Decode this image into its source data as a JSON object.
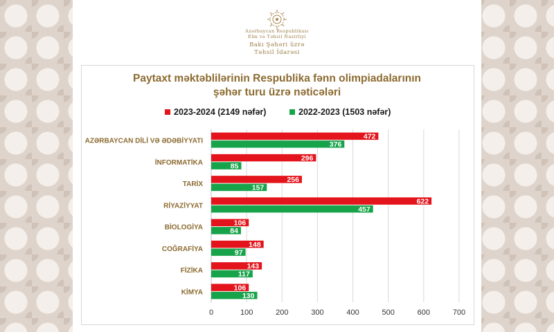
{
  "header": {
    "org_line1": "Azərbaycan Respublikası",
    "org_line2": "Elm və Təhsil Nazirliyi",
    "org_line3": "Bakı Şəhəri üzrə",
    "org_line4": "Təhsil İdarəsi",
    "logo_icon": "ministry-emblem-icon"
  },
  "chart_data": {
    "type": "bar",
    "orientation": "horizontal",
    "title_line1": "Paytaxt məktəblilərinin Respublika fənn olimpiadalarının",
    "title_line2": "şəhər turu üzrə nəticələri",
    "categories": [
      "AZƏRBAYCAN DİLİ VƏ ƏDƏBİYYATI",
      "İNFORMATİKA",
      "TARİX",
      "RİYAZİYYAT",
      "BİOLOGİYA",
      "COĞRAFİYA",
      "FİZİKA",
      "KİMYA"
    ],
    "series": [
      {
        "name": "2023-2024 (2149 nəfər)",
        "color": "#e3141b",
        "values": [
          472,
          296,
          256,
          622,
          106,
          148,
          143,
          106
        ]
      },
      {
        "name": "2022-2023 (1503 nəfər)",
        "color": "#17a34a",
        "values": [
          376,
          85,
          157,
          457,
          84,
          97,
          117,
          130
        ]
      }
    ],
    "xlim": [
      0,
      700
    ],
    "xticks": [
      "0",
      "100",
      "200",
      "300",
      "400",
      "500",
      "600",
      "700"
    ],
    "grid": true,
    "legend": "top",
    "category_label_color": "#8b6a2f"
  }
}
